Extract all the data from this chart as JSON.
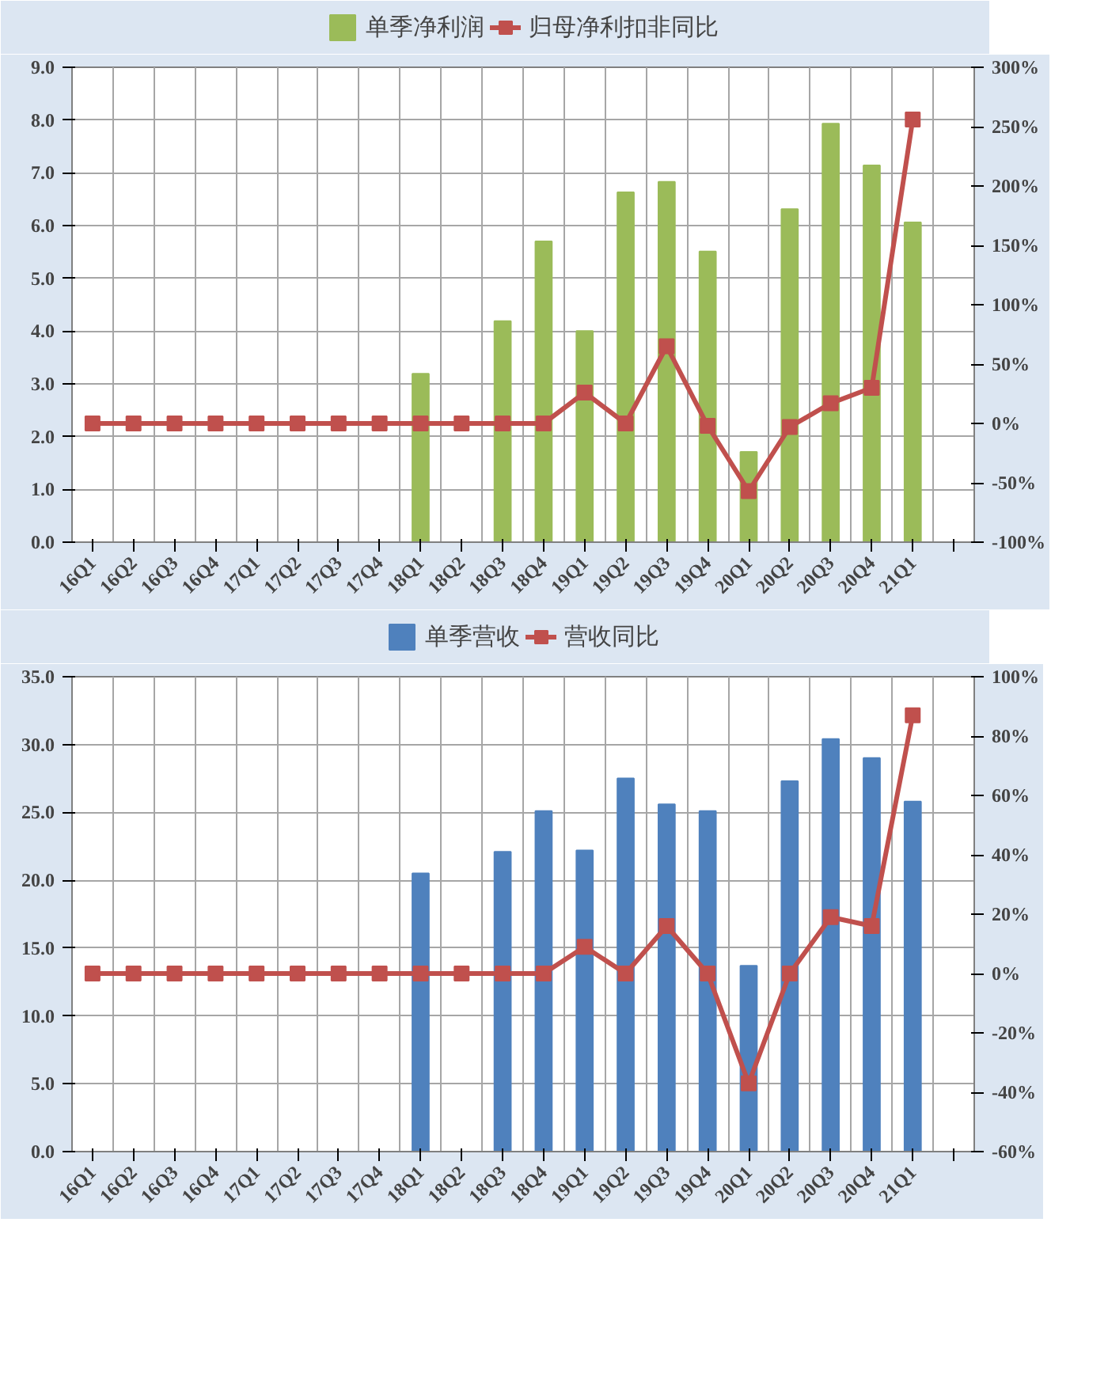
{
  "chart_data": [
    {
      "type": "bar",
      "categories": [
        "16Q1",
        "16Q2",
        "16Q3",
        "16Q4",
        "17Q1",
        "17Q2",
        "17Q3",
        "17Q4",
        "18Q1",
        "18Q2",
        "18Q3",
        "18Q4",
        "19Q1",
        "19Q2",
        "19Q3",
        "19Q4",
        "20Q1",
        "20Q2",
        "20Q3",
        "20Q4",
        "21Q1",
        null
      ],
      "series": [
        {
          "name": "单季净利润",
          "color": "#9bbb59",
          "values": [
            null,
            null,
            null,
            null,
            null,
            null,
            null,
            null,
            3.19,
            null,
            4.19,
            5.7,
            4.0,
            6.63,
            6.83,
            5.51,
            1.71,
            6.31,
            7.93,
            7.14,
            6.06,
            null
          ]
        },
        {
          "name": "归母净利扣非同比",
          "type": "line",
          "axis": "y2",
          "color": "#c0504d",
          "values": [
            0,
            0,
            0,
            0,
            0,
            0,
            0,
            0,
            0,
            0,
            0,
            0,
            26,
            0,
            65,
            -2,
            -57,
            -3,
            17,
            30,
            256,
            null
          ]
        }
      ],
      "ylim": [
        0,
        9
      ],
      "yticks": [
        {
          "value": 0,
          "label": "0.0"
        },
        {
          "value": 1,
          "label": "1.0"
        },
        {
          "value": 2,
          "label": "2.0"
        },
        {
          "value": 3,
          "label": "3.0"
        },
        {
          "value": 4,
          "label": "4.0"
        },
        {
          "value": 5,
          "label": "5.0"
        },
        {
          "value": 6,
          "label": "6.0"
        },
        {
          "value": 7,
          "label": "7.0"
        },
        {
          "value": 8,
          "label": "8.0"
        },
        {
          "value": 9,
          "label": "9.0"
        }
      ],
      "y2lim": [
        -100,
        300
      ],
      "y2ticks": [
        {
          "value": -100,
          "label": "-100%"
        },
        {
          "value": -50,
          "label": "-50%"
        },
        {
          "value": 0,
          "label": "0%"
        },
        {
          "value": 50,
          "label": "50%"
        },
        {
          "value": 100,
          "label": "100%"
        },
        {
          "value": 150,
          "label": "150%"
        },
        {
          "value": 200,
          "label": "200%"
        },
        {
          "value": 250,
          "label": "250%"
        },
        {
          "value": 300,
          "label": "300%"
        }
      ],
      "marker": "square",
      "grid": true,
      "legend": "top"
    },
    {
      "type": "bar",
      "categories": [
        "16Q1",
        "16Q2",
        "16Q3",
        "16Q4",
        "17Q1",
        "17Q2",
        "17Q3",
        "17Q4",
        "18Q1",
        "18Q2",
        "18Q3",
        "18Q4",
        "19Q1",
        "19Q2",
        "19Q3",
        "19Q4",
        "20Q1",
        "20Q2",
        "20Q3",
        "20Q4",
        "21Q1",
        null
      ],
      "series": [
        {
          "name": "单季营收",
          "color": "#4f81bd",
          "values": [
            null,
            null,
            null,
            null,
            null,
            null,
            null,
            null,
            20.5,
            null,
            22.1,
            25.1,
            22.2,
            27.5,
            25.6,
            25.1,
            13.7,
            27.3,
            30.4,
            29.0,
            25.8,
            null
          ]
        },
        {
          "name": "营收同比",
          "type": "line",
          "axis": "y2",
          "color": "#c0504d",
          "values": [
            0,
            0,
            0,
            0,
            0,
            0,
            0,
            0,
            0,
            0,
            0,
            0,
            9,
            0,
            16,
            0,
            -37,
            0,
            19,
            16,
            87,
            null
          ]
        }
      ],
      "ylim": [
        0,
        35
      ],
      "yticks": [
        {
          "value": 0,
          "label": "0.0"
        },
        {
          "value": 5,
          "label": "5.0"
        },
        {
          "value": 10,
          "label": "10.0"
        },
        {
          "value": 15,
          "label": "15.0"
        },
        {
          "value": 20,
          "label": "20.0"
        },
        {
          "value": 25,
          "label": "25.0"
        },
        {
          "value": 30,
          "label": "30.0"
        },
        {
          "value": 35,
          "label": "35.0"
        }
      ],
      "y2lim": [
        -60,
        100
      ],
      "y2ticks": [
        {
          "value": -60,
          "label": "-60%"
        },
        {
          "value": -40,
          "label": "-40%"
        },
        {
          "value": -20,
          "label": "-20%"
        },
        {
          "value": 0,
          "label": "0%"
        },
        {
          "value": 20,
          "label": "20%"
        },
        {
          "value": 40,
          "label": "40%"
        },
        {
          "value": 60,
          "label": "60%"
        },
        {
          "value": 80,
          "label": "80%"
        },
        {
          "value": 100,
          "label": "100%"
        }
      ],
      "marker": "square",
      "grid": true,
      "legend": "top"
    }
  ]
}
